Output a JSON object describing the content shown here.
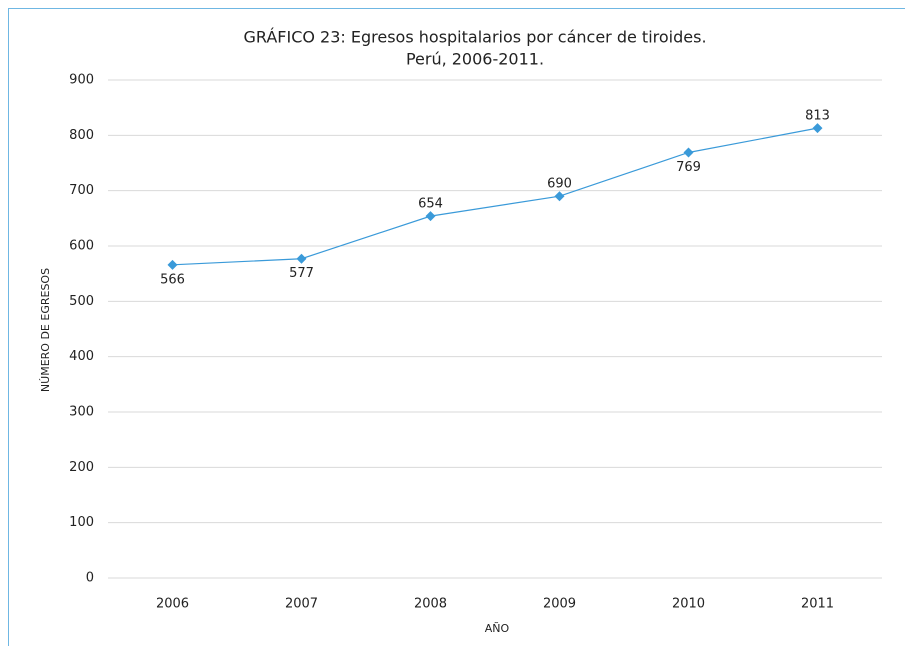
{
  "chart_data": {
    "type": "line",
    "title": [
      "GRÁFICO 23: Egresos hospitalarios por cáncer de tiroides.",
      "Perú, 2006-2011."
    ],
    "x_label": "AÑO",
    "y_label": "NÚMERO DE EGRESOS",
    "categories": [
      "2006",
      "2007",
      "2008",
      "2009",
      "2010",
      "2011"
    ],
    "series": [
      {
        "name": "Egresos",
        "color": "#3a9ad9",
        "values": [
          566,
          577,
          654,
          690,
          769,
          813
        ]
      }
    ],
    "ylim": [
      0,
      900
    ],
    "yticks": [
      0,
      100,
      200,
      300,
      400,
      500,
      600,
      700,
      800,
      900
    ],
    "grid": true
  }
}
